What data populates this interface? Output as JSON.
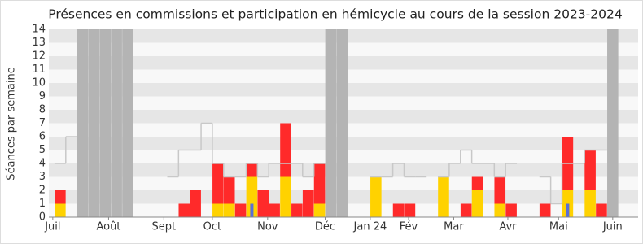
{
  "chart_data": {
    "type": "bar",
    "title": "Présences en commissions et participation en hémicycle au cours de la session 2023-2024",
    "y_label": "Séances par semaine",
    "x": [
      0,
      1,
      2,
      3,
      4,
      5,
      6,
      7,
      8,
      9,
      10,
      11,
      12,
      13,
      14,
      15,
      16,
      17,
      18,
      19,
      20,
      21,
      22,
      23,
      24,
      25,
      26,
      27,
      28,
      29,
      30,
      31,
      32,
      33,
      34,
      35,
      36,
      37,
      38,
      39,
      40,
      41,
      42,
      43,
      44,
      45,
      46,
      47,
      48,
      49,
      50,
      51
    ],
    "xlim": [
      -1,
      51.25
    ],
    "xticks": [
      {
        "value": -0.65,
        "label": "Juil"
      },
      {
        "value": 4.3,
        "label": "Août"
      },
      {
        "value": 9.2,
        "label": "Sept"
      },
      {
        "value": 13.5,
        "label": "Oct"
      },
      {
        "value": 18.4,
        "label": "Nov"
      },
      {
        "value": 23.5,
        "label": "Déc"
      },
      {
        "value": 27.5,
        "label": "Jan 24"
      },
      {
        "value": 30.9,
        "label": "Fév"
      },
      {
        "value": 34.9,
        "label": "Mar"
      },
      {
        "value": 39.7,
        "label": "Avr"
      },
      {
        "value": 44.2,
        "label": "Mai"
      },
      {
        "value": 49,
        "label": "Juin"
      }
    ],
    "ylim": [
      0,
      14
    ],
    "yticks": [
      0,
      1,
      2,
      3,
      4,
      5,
      6,
      7,
      8,
      9,
      10,
      11,
      12,
      13,
      14
    ],
    "grid": "stripes",
    "series": [
      {
        "mark": "bar",
        "color": "#b4b4b4",
        "values": [
          null,
          null,
          14,
          14,
          14,
          14,
          14,
          null,
          null,
          null,
          null,
          null,
          null,
          null,
          null,
          null,
          null,
          null,
          null,
          null,
          null,
          null,
          null,
          null,
          14,
          14,
          null,
          null,
          null,
          null,
          null,
          null,
          null,
          null,
          null,
          null,
          null,
          null,
          null,
          null,
          null,
          null,
          null,
          null,
          null,
          null,
          null,
          null,
          null,
          14,
          null,
          null
        ]
      },
      {
        "mark": "bar",
        "color": "#ffd200",
        "values": [
          1,
          null,
          null,
          null,
          null,
          null,
          null,
          null,
          null,
          null,
          null,
          null,
          null,
          null,
          1,
          1,
          null,
          3,
          null,
          null,
          3,
          null,
          null,
          1,
          null,
          null,
          null,
          null,
          3,
          null,
          null,
          null,
          null,
          null,
          3,
          null,
          null,
          2,
          null,
          1,
          null,
          null,
          null,
          null,
          null,
          2,
          null,
          2,
          null,
          null,
          null,
          null
        ]
      },
      {
        "mark": "bar",
        "stack": true,
        "color": "#ff2a2a",
        "values": [
          1,
          null,
          null,
          null,
          null,
          null,
          null,
          null,
          null,
          null,
          null,
          1,
          2,
          null,
          3,
          2,
          1,
          1,
          2,
          1,
          4,
          1,
          2,
          3,
          null,
          null,
          null,
          null,
          null,
          null,
          1,
          1,
          null,
          null,
          null,
          null,
          1,
          1,
          null,
          2,
          1,
          null,
          null,
          1,
          null,
          4,
          null,
          3,
          1,
          null,
          null,
          null
        ]
      },
      {
        "mark": "thin_bar",
        "color": "#5a6fd6",
        "values": [
          null,
          null,
          null,
          null,
          null,
          null,
          null,
          null,
          null,
          null,
          null,
          null,
          null,
          null,
          null,
          null,
          null,
          1,
          null,
          null,
          null,
          null,
          null,
          null,
          null,
          null,
          null,
          null,
          null,
          null,
          null,
          null,
          null,
          null,
          null,
          null,
          null,
          null,
          null,
          null,
          null,
          null,
          null,
          null,
          null,
          1,
          null,
          null,
          null,
          null,
          null,
          null
        ]
      },
      {
        "mark": "step",
        "color": "#c8c8c8",
        "values": [
          4,
          6,
          null,
          null,
          null,
          null,
          null,
          null,
          null,
          null,
          3,
          5,
          5,
          7,
          4,
          3,
          3,
          4,
          3,
          4,
          4,
          4,
          3,
          4,
          null,
          null,
          null,
          null,
          3,
          3,
          4,
          3,
          3,
          null,
          3,
          4,
          5,
          4,
          4,
          3,
          4,
          null,
          null,
          3,
          1,
          4,
          4,
          5,
          5,
          null,
          null,
          null
        ]
      }
    ]
  }
}
